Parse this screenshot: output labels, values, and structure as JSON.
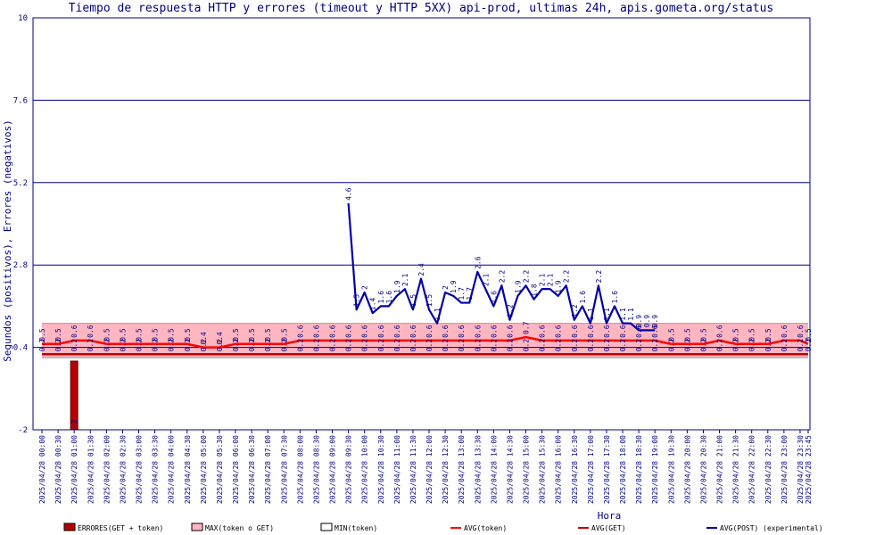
{
  "chart_data": {
    "type": "line",
    "title": "Tiempo de respuesta HTTP y errores (timeout y HTTP 5XX) api-prod, ultimas 24h, apis.gometa.org/status",
    "xlabel": "Hora",
    "ylabel": "Segundos (positivos), Errores (negativos)",
    "ylim": [
      -2,
      10
    ],
    "yticks": [
      "-2",
      "0.4",
      "2.8",
      "5.2",
      "7.6",
      "10"
    ],
    "grid": true,
    "legend_placement": "bottom",
    "categories": [
      "2025/04/28 00:00",
      "2025/04/28 00:30",
      "2025/04/28 01:00",
      "2025/04/28 01:30",
      "2025/04/28 02:00",
      "2025/04/28 02:30",
      "2025/04/28 03:00",
      "2025/04/28 03:30",
      "2025/04/28 04:00",
      "2025/04/28 04:30",
      "2025/04/28 05:00",
      "2025/04/28 05:30",
      "2025/04/28 06:00",
      "2025/04/28 06:30",
      "2025/04/28 07:00",
      "2025/04/28 07:30",
      "2025/04/28 08:00",
      "2025/04/28 08:30",
      "2025/04/28 09:00",
      "2025/04/28 09:30",
      "2025/04/28 10:00",
      "2025/04/28 10:30",
      "2025/04/28 11:00",
      "2025/04/28 11:30",
      "2025/04/28 12:00",
      "2025/04/28 12:30",
      "2025/04/28 13:00",
      "2025/04/28 13:30",
      "2025/04/28 14:00",
      "2025/04/28 14:30",
      "2025/04/28 15:00",
      "2025/04/28 15:30",
      "2025/04/28 16:00",
      "2025/04/28 16:30",
      "2025/04/28 17:00",
      "2025/04/28 17:30",
      "2025/04/28 18:00",
      "2025/04/28 18:30",
      "2025/04/28 19:00",
      "2025/04/28 19:30",
      "2025/04/28 20:00",
      "2025/04/28 20:30",
      "2025/04/28 21:00",
      "2025/04/28 21:30",
      "2025/04/28 22:00",
      "2025/04/28 22:30",
      "2025/04/28 23:00",
      "2025/04/28 23:30",
      "2025/04/28 23:45"
    ],
    "series": [
      {
        "name": "ERRORES(GET + token)",
        "kind": "error_bar",
        "color": "#b80000",
        "values": [
          {
            "x": "2025/04/28 01:00",
            "y": -2,
            "label": "-2"
          }
        ]
      },
      {
        "name": "MAX(token o GET)",
        "kind": "band_upper",
        "color": "#ffb6c1",
        "values": [
          1.1,
          1.1,
          1.1,
          1.1,
          1.1,
          1.1,
          1.1,
          1.1,
          1.1,
          1.1,
          1.1,
          1.1,
          1.1,
          1.1,
          1.1,
          1.1,
          1.1,
          1.1,
          1.1,
          1.1,
          1.1,
          1.1,
          1.1,
          1.1,
          1.1,
          1.1,
          1.1,
          1.1,
          1.1,
          1.1,
          1.1,
          1.1,
          1.1,
          1.1,
          1.1,
          1.1,
          1.1,
          1.1,
          1.1,
          1.1,
          1.1,
          1.1,
          1.1,
          1.1,
          1.1,
          1.1,
          1.1,
          1.1,
          1.1
        ]
      },
      {
        "name": "MIN(token)",
        "kind": "band_lower",
        "color": "#ffffff",
        "values": [
          0.1,
          0.1,
          0.1,
          0.1,
          0.1,
          0.1,
          0.1,
          0.1,
          0.1,
          0.1,
          0.1,
          0.1,
          0.1,
          0.1,
          0.1,
          0.1,
          0.1,
          0.1,
          0.1,
          0.1,
          0.1,
          0.1,
          0.1,
          0.1,
          0.1,
          0.1,
          0.1,
          0.1,
          0.1,
          0.1,
          0.1,
          0.1,
          0.1,
          0.1,
          0.1,
          0.1,
          0.1,
          0.1,
          0.1,
          0.1,
          0.1,
          0.1,
          0.1,
          0.1,
          0.1,
          0.1,
          0.1,
          0.1,
          0.1
        ]
      },
      {
        "name": "AVG(token)",
        "kind": "line",
        "color": "#ff0000",
        "values": [
          0.5,
          0.5,
          0.6,
          0.6,
          0.5,
          0.5,
          0.5,
          0.5,
          0.5,
          0.5,
          0.4,
          0.4,
          0.5,
          0.5,
          0.5,
          0.5,
          0.6,
          0.6,
          0.6,
          0.6,
          0.6,
          0.6,
          0.6,
          0.6,
          0.6,
          0.6,
          0.6,
          0.6,
          0.6,
          0.6,
          0.7,
          0.6,
          0.6,
          0.6,
          0.6,
          0.6,
          0.6,
          0.6,
          0.6,
          0.5,
          0.5,
          0.5,
          0.6,
          0.5,
          0.5,
          0.5,
          0.6,
          0.6,
          0.5
        ],
        "labels": [
          "0.5",
          "0.5",
          "0.6",
          "0.6",
          "0.5",
          "0.5",
          "0.5",
          "0.5",
          "0.5",
          "0.5",
          "0.4",
          "0.4",
          "0.5",
          "0.5",
          "0.5",
          "0.5",
          "0.6",
          "0.6",
          "0.6",
          "0.6",
          "0.6",
          "0.6",
          "0.6",
          "0.6",
          "0.6",
          "0.6",
          "0.6",
          "0.6",
          "0.6",
          "0.6",
          "0.7",
          "0.6",
          "0.6",
          "0.6",
          "0.6",
          "0.6",
          "0.6",
          "0.6",
          "0.6",
          "0.5",
          "0.5",
          "0.5",
          "0.6",
          "0.5",
          "0.5",
          "0.5",
          "0.6",
          "0.6",
          "0.5"
        ]
      },
      {
        "name": "AVG(GET)",
        "kind": "line",
        "color": "#c00000",
        "values": [
          0.2,
          0.2,
          0.2,
          0.2,
          0.2,
          0.2,
          0.2,
          0.2,
          0.2,
          0.2,
          0.2,
          0.2,
          0.2,
          0.2,
          0.2,
          0.2,
          0.2,
          0.2,
          0.2,
          0.2,
          0.2,
          0.2,
          0.2,
          0.2,
          0.2,
          0.2,
          0.2,
          0.2,
          0.2,
          0.2,
          0.2,
          0.2,
          0.2,
          0.2,
          0.2,
          0.2,
          0.2,
          0.2,
          0.2,
          0.2,
          0.2,
          0.2,
          0.2,
          0.2,
          0.2,
          0.2,
          0.2,
          0.2,
          0.2
        ],
        "labels": [
          "0.2",
          "0.2",
          "0.2",
          "0.2",
          "0.2",
          "0.2",
          "0.2",
          "0.2",
          "0.2",
          "0.2",
          "0.2",
          "0.2",
          "0.2",
          "0.2",
          "0.2",
          "0.2",
          "0.2",
          "0.2",
          "0.2",
          "0.2",
          "0.2",
          "0.2",
          "0.2",
          "0.2",
          "0.2",
          "0.2",
          "0.2",
          "0.2",
          "0.2",
          "0.2",
          "0.2",
          "0.2",
          "0.2",
          "0.2",
          "0.2",
          "0.2",
          "0.2",
          "0.2",
          "0.2",
          "0.2",
          "0.2",
          "0.2",
          "0.2",
          "0.2",
          "0.2",
          "0.2",
          "0.2",
          "0.2",
          "0.2"
        ]
      },
      {
        "name": "AVG(POST) (experimental)",
        "kind": "line",
        "color": "#0000aa",
        "values": [
          {
            "x": "2025/04/28 09:30",
            "y": 4.6
          },
          {
            "x": "2025/04/28 09:45",
            "y": 1.5
          },
          {
            "x": "2025/04/28 10:00",
            "y": 2.0
          },
          {
            "x": "2025/04/28 10:15",
            "y": 1.4
          },
          {
            "x": "2025/04/28 10:30",
            "y": 1.6
          },
          {
            "x": "2025/04/28 10:45",
            "y": 1.6
          },
          {
            "x": "2025/04/28 11:00",
            "y": 1.9
          },
          {
            "x": "2025/04/28 11:15",
            "y": 2.1
          },
          {
            "x": "2025/04/28 11:30",
            "y": 1.5
          },
          {
            "x": "2025/04/28 11:45",
            "y": 2.4
          },
          {
            "x": "2025/04/28 12:00",
            "y": 1.5
          },
          {
            "x": "2025/04/28 12:15",
            "y": 1.1
          },
          {
            "x": "2025/04/28 12:30",
            "y": 2.0
          },
          {
            "x": "2025/04/28 12:45",
            "y": 1.9
          },
          {
            "x": "2025/04/28 13:00",
            "y": 1.7
          },
          {
            "x": "2025/04/28 13:15",
            "y": 1.7
          },
          {
            "x": "2025/04/28 13:30",
            "y": 2.6
          },
          {
            "x": "2025/04/28 13:45",
            "y": 2.1
          },
          {
            "x": "2025/04/28 14:00",
            "y": 1.6
          },
          {
            "x": "2025/04/28 14:15",
            "y": 2.2
          },
          {
            "x": "2025/04/28 14:30",
            "y": 1.2
          },
          {
            "x": "2025/04/28 14:45",
            "y": 1.9
          },
          {
            "x": "2025/04/28 15:00",
            "y": 2.2
          },
          {
            "x": "2025/04/28 15:15",
            "y": 1.8
          },
          {
            "x": "2025/04/28 15:30",
            "y": 2.1
          },
          {
            "x": "2025/04/28 15:45",
            "y": 2.1
          },
          {
            "x": "2025/04/28 16:00",
            "y": 1.9
          },
          {
            "x": "2025/04/28 16:15",
            "y": 2.2
          },
          {
            "x": "2025/04/28 16:30",
            "y": 1.2
          },
          {
            "x": "2025/04/28 16:45",
            "y": 1.6
          },
          {
            "x": "2025/04/28 17:00",
            "y": 1.1
          },
          {
            "x": "2025/04/28 17:15",
            "y": 2.2
          },
          {
            "x": "2025/04/28 17:30",
            "y": 1.1
          },
          {
            "x": "2025/04/28 17:45",
            "y": 1.6
          },
          {
            "x": "2025/04/28 18:00",
            "y": 1.1
          },
          {
            "x": "2025/04/28 18:15",
            "y": 1.1
          },
          {
            "x": "2025/04/28 18:30",
            "y": 0.9
          },
          {
            "x": "2025/04/28 18:45",
            "y": 0.9
          },
          {
            "x": "2025/04/28 19:00",
            "y": 0.9
          }
        ],
        "labels": [
          "4.6",
          "1.5",
          "2",
          "1.4",
          "1.6",
          "1.6",
          "1.9",
          "2.1",
          "1.5",
          "2.4",
          "1.5",
          "1.1",
          "2",
          "1.9",
          "1.7",
          "1.7",
          "2.6",
          "2.1",
          "1.6",
          "2.2",
          "1.2",
          "1.9",
          "2.2",
          "1.8",
          "2.1",
          "2.1",
          "1.9",
          "2.2",
          "1.2",
          "1.6",
          "1.1",
          "2.2",
          "1.1",
          "1.6",
          "1.1",
          "1.1",
          "0.9",
          "0.9",
          "0.9"
        ]
      }
    ]
  }
}
